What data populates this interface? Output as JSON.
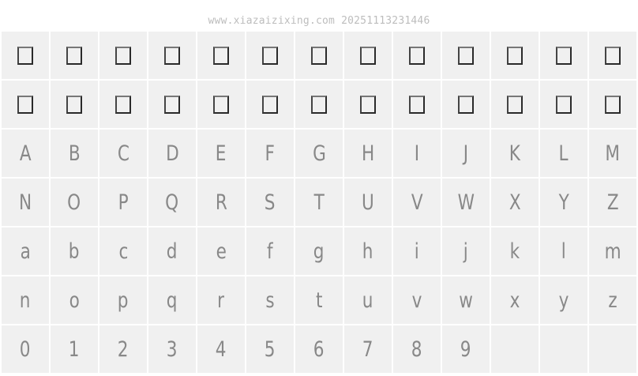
{
  "header": {
    "text": "www.xiazaizixing.com 20251113231446"
  },
  "missing_glyph_icon": "missing-glyph-box",
  "colors": {
    "cell_bg": "#f0f0f0",
    "gap": "#ffffff",
    "glyph": "#6a6a6a",
    "header_text": "#bdbdbd"
  },
  "rows": [
    [
      "",
      "",
      "",
      "",
      "",
      "",
      "",
      "",
      "",
      "",
      "",
      "",
      ""
    ],
    [
      "",
      "",
      "",
      "",
      "",
      "",
      "",
      "",
      "",
      "",
      "",
      "",
      ""
    ],
    [
      "A",
      "B",
      "C",
      "D",
      "E",
      "F",
      "G",
      "H",
      "I",
      "J",
      "K",
      "L",
      "M"
    ],
    [
      "N",
      "O",
      "P",
      "Q",
      "R",
      "S",
      "T",
      "U",
      "V",
      "W",
      "X",
      "Y",
      "Z"
    ],
    [
      "a",
      "b",
      "c",
      "d",
      "e",
      "f",
      "g",
      "h",
      "i",
      "j",
      "k",
      "l",
      "m"
    ],
    [
      "n",
      "o",
      "p",
      "q",
      "r",
      "s",
      "t",
      "u",
      "v",
      "w",
      "x",
      "y",
      "z"
    ],
    [
      "0",
      "1",
      "2",
      "3",
      "4",
      "5",
      "6",
      "7",
      "8",
      "9",
      "",
      "",
      ""
    ]
  ],
  "missing_rows": [
    0,
    1
  ]
}
